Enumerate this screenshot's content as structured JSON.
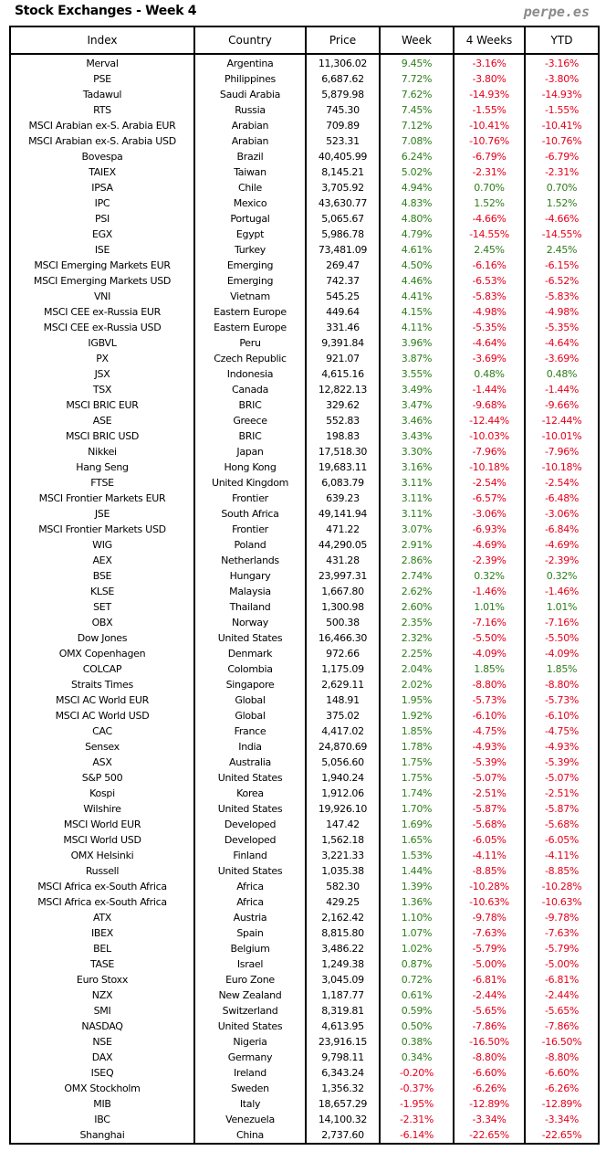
{
  "header": {
    "title": "Stock Exchanges - Week 4",
    "brand": "perpe.es"
  },
  "colors": {
    "positive": "#2e7d1a",
    "negative": "#e8001c"
  },
  "table": {
    "columns": [
      "Index",
      "Country",
      "Price",
      "Week",
      "4 Weeks",
      "YTD"
    ],
    "rows": [
      [
        "Merval",
        "Argentina",
        "11,306.02",
        "9.45%",
        "-3.16%",
        "-3.16%"
      ],
      [
        "PSE",
        "Philippines",
        "6,687.62",
        "7.72%",
        "-3.80%",
        "-3.80%"
      ],
      [
        "Tadawul",
        "Saudi Arabia",
        "5,879.98",
        "7.62%",
        "-14.93%",
        "-14.93%"
      ],
      [
        "RTS",
        "Russia",
        "745.30",
        "7.45%",
        "-1.55%",
        "-1.55%"
      ],
      [
        "MSCI Arabian ex-S. Arabia EUR",
        "Arabian",
        "709.89",
        "7.12%",
        "-10.41%",
        "-10.41%"
      ],
      [
        "MSCI Arabian ex-S. Arabia USD",
        "Arabian",
        "523.31",
        "7.08%",
        "-10.76%",
        "-10.76%"
      ],
      [
        "Bovespa",
        "Brazil",
        "40,405.99",
        "6.24%",
        "-6.79%",
        "-6.79%"
      ],
      [
        "TAIEX",
        "Taiwan",
        "8,145.21",
        "5.02%",
        "-2.31%",
        "-2.31%"
      ],
      [
        "IPSA",
        "Chile",
        "3,705.92",
        "4.94%",
        "0.70%",
        "0.70%"
      ],
      [
        "IPC",
        "Mexico",
        "43,630.77",
        "4.83%",
        "1.52%",
        "1.52%"
      ],
      [
        "PSI",
        "Portugal",
        "5,065.67",
        "4.80%",
        "-4.66%",
        "-4.66%"
      ],
      [
        "EGX",
        "Egypt",
        "5,986.78",
        "4.79%",
        "-14.55%",
        "-14.55%"
      ],
      [
        "ISE",
        "Turkey",
        "73,481.09",
        "4.61%",
        "2.45%",
        "2.45%"
      ],
      [
        "MSCI Emerging Markets EUR",
        "Emerging",
        "269.47",
        "4.50%",
        "-6.16%",
        "-6.15%"
      ],
      [
        "MSCI Emerging Markets USD",
        "Emerging",
        "742.37",
        "4.46%",
        "-6.53%",
        "-6.52%"
      ],
      [
        "VNI",
        "Vietnam",
        "545.25",
        "4.41%",
        "-5.83%",
        "-5.83%"
      ],
      [
        "MSCI CEE ex-Russia EUR",
        "Eastern Europe",
        "449.64",
        "4.15%",
        "-4.98%",
        "-4.98%"
      ],
      [
        "MSCI CEE ex-Russia USD",
        "Eastern Europe",
        "331.46",
        "4.11%",
        "-5.35%",
        "-5.35%"
      ],
      [
        "IGBVL",
        "Peru",
        "9,391.84",
        "3.96%",
        "-4.64%",
        "-4.64%"
      ],
      [
        "PX",
        "Czech Republic",
        "921.07",
        "3.87%",
        "-3.69%",
        "-3.69%"
      ],
      [
        "JSX",
        "Indonesia",
        "4,615.16",
        "3.55%",
        "0.48%",
        "0.48%"
      ],
      [
        "TSX",
        "Canada",
        "12,822.13",
        "3.49%",
        "-1.44%",
        "-1.44%"
      ],
      [
        "MSCI BRIC EUR",
        "BRIC",
        "329.62",
        "3.47%",
        "-9.68%",
        "-9.66%"
      ],
      [
        "ASE",
        "Greece",
        "552.83",
        "3.46%",
        "-12.44%",
        "-12.44%"
      ],
      [
        "MSCI BRIC USD",
        "BRIC",
        "198.83",
        "3.43%",
        "-10.03%",
        "-10.01%"
      ],
      [
        "Nikkei",
        "Japan",
        "17,518.30",
        "3.30%",
        "-7.96%",
        "-7.96%"
      ],
      [
        "Hang Seng",
        "Hong Kong",
        "19,683.11",
        "3.16%",
        "-10.18%",
        "-10.18%"
      ],
      [
        "FTSE",
        "United Kingdom",
        "6,083.79",
        "3.11%",
        "-2.54%",
        "-2.54%"
      ],
      [
        "MSCI Frontier Markets EUR",
        "Frontier",
        "639.23",
        "3.11%",
        "-6.57%",
        "-6.48%"
      ],
      [
        "JSE",
        "South Africa",
        "49,141.94",
        "3.11%",
        "-3.06%",
        "-3.06%"
      ],
      [
        "MSCI Frontier Markets USD",
        "Frontier",
        "471.22",
        "3.07%",
        "-6.93%",
        "-6.84%"
      ],
      [
        "WIG",
        "Poland",
        "44,290.05",
        "2.91%",
        "-4.69%",
        "-4.69%"
      ],
      [
        "AEX",
        "Netherlands",
        "431.28",
        "2.86%",
        "-2.39%",
        "-2.39%"
      ],
      [
        "BSE",
        "Hungary",
        "23,997.31",
        "2.74%",
        "0.32%",
        "0.32%"
      ],
      [
        "KLSE",
        "Malaysia",
        "1,667.80",
        "2.62%",
        "-1.46%",
        "-1.46%"
      ],
      [
        "SET",
        "Thailand",
        "1,300.98",
        "2.60%",
        "1.01%",
        "1.01%"
      ],
      [
        "OBX",
        "Norway",
        "500.38",
        "2.35%",
        "-7.16%",
        "-7.16%"
      ],
      [
        "Dow Jones",
        "United States",
        "16,466.30",
        "2.32%",
        "-5.50%",
        "-5.50%"
      ],
      [
        "OMX Copenhagen",
        "Denmark",
        "972.66",
        "2.25%",
        "-4.09%",
        "-4.09%"
      ],
      [
        "COLCAP",
        "Colombia",
        "1,175.09",
        "2.04%",
        "1.85%",
        "1.85%"
      ],
      [
        "Straits Times",
        "Singapore",
        "2,629.11",
        "2.02%",
        "-8.80%",
        "-8.80%"
      ],
      [
        "MSCI AC World EUR",
        "Global",
        "148.91",
        "1.95%",
        "-5.73%",
        "-5.73%"
      ],
      [
        "MSCI AC World USD",
        "Global",
        "375.02",
        "1.92%",
        "-6.10%",
        "-6.10%"
      ],
      [
        "CAC",
        "France",
        "4,417.02",
        "1.85%",
        "-4.75%",
        "-4.75%"
      ],
      [
        "Sensex",
        "India",
        "24,870.69",
        "1.78%",
        "-4.93%",
        "-4.93%"
      ],
      [
        "ASX",
        "Australia",
        "5,056.60",
        "1.75%",
        "-5.39%",
        "-5.39%"
      ],
      [
        "S&P 500",
        "United States",
        "1,940.24",
        "1.75%",
        "-5.07%",
        "-5.07%"
      ],
      [
        "Kospi",
        "Korea",
        "1,912.06",
        "1.74%",
        "-2.51%",
        "-2.51%"
      ],
      [
        "Wilshire",
        "United States",
        "19,926.10",
        "1.70%",
        "-5.87%",
        "-5.87%"
      ],
      [
        "MSCI World EUR",
        "Developed",
        "147.42",
        "1.69%",
        "-5.68%",
        "-5.68%"
      ],
      [
        "MSCI World USD",
        "Developed",
        "1,562.18",
        "1.65%",
        "-6.05%",
        "-6.05%"
      ],
      [
        "OMX Helsinki",
        "Finland",
        "3,221.33",
        "1.53%",
        "-4.11%",
        "-4.11%"
      ],
      [
        "Russell",
        "United States",
        "1,035.38",
        "1.44%",
        "-8.85%",
        "-8.85%"
      ],
      [
        "MSCI Africa ex-South Africa",
        "Africa",
        "582.30",
        "1.39%",
        "-10.28%",
        "-10.28%"
      ],
      [
        "MSCI Africa ex-South Africa",
        "Africa",
        "429.25",
        "1.36%",
        "-10.63%",
        "-10.63%"
      ],
      [
        "ATX",
        "Austria",
        "2,162.42",
        "1.10%",
        "-9.78%",
        "-9.78%"
      ],
      [
        "IBEX",
        "Spain",
        "8,815.80",
        "1.07%",
        "-7.63%",
        "-7.63%"
      ],
      [
        "BEL",
        "Belgium",
        "3,486.22",
        "1.02%",
        "-5.79%",
        "-5.79%"
      ],
      [
        "TASE",
        "Israel",
        "1,249.38",
        "0.87%",
        "-5.00%",
        "-5.00%"
      ],
      [
        "Euro Stoxx",
        "Euro Zone",
        "3,045.09",
        "0.72%",
        "-6.81%",
        "-6.81%"
      ],
      [
        "NZX",
        "New Zealand",
        "1,187.77",
        "0.61%",
        "-2.44%",
        "-2.44%"
      ],
      [
        "SMI",
        "Switzerland",
        "8,319.81",
        "0.59%",
        "-5.65%",
        "-5.65%"
      ],
      [
        "NASDAQ",
        "United States",
        "4,613.95",
        "0.50%",
        "-7.86%",
        "-7.86%"
      ],
      [
        "NSE",
        "Nigeria",
        "23,916.15",
        "0.38%",
        "-16.50%",
        "-16.50%"
      ],
      [
        "DAX",
        "Germany",
        "9,798.11",
        "0.34%",
        "-8.80%",
        "-8.80%"
      ],
      [
        "ISEQ",
        "Ireland",
        "6,343.24",
        "-0.20%",
        "-6.60%",
        "-6.60%"
      ],
      [
        "OMX Stockholm",
        "Sweden",
        "1,356.32",
        "-0.37%",
        "-6.26%",
        "-6.26%"
      ],
      [
        "MIB",
        "Italy",
        "18,657.29",
        "-1.95%",
        "-12.89%",
        "-12.89%"
      ],
      [
        "IBC",
        "Venezuela",
        "14,100.32",
        "-2.31%",
        "-3.34%",
        "-3.34%"
      ],
      [
        "Shanghai",
        "China",
        "2,737.60",
        "-6.14%",
        "-22.65%",
        "-22.65%"
      ]
    ]
  }
}
